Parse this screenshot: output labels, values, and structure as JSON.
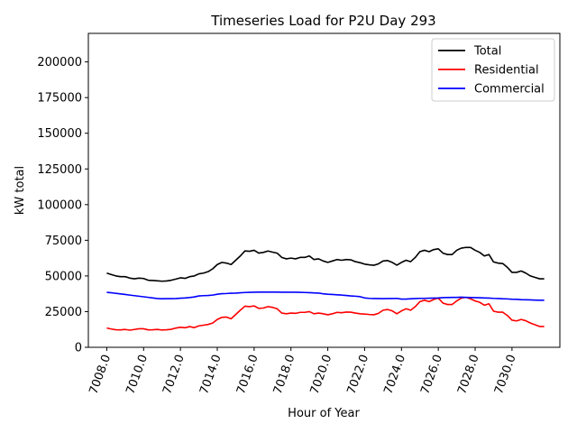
{
  "chart_data": {
    "type": "line",
    "title": "Timeseries Load for P2U   Day 293",
    "xlabel": "Hour of Year",
    "ylabel": "kW total",
    "xlim": [
      7007.0,
      7032.6
    ],
    "ylim": [
      0,
      220000
    ],
    "xticks": [
      7008.0,
      7010.0,
      7012.0,
      7014.0,
      7016.0,
      7018.0,
      7020.0,
      7022.0,
      7024.0,
      7026.0,
      7028.0,
      7030.0
    ],
    "xtick_labels": [
      "7008.0",
      "7010.0",
      "7012.0",
      "7014.0",
      "7016.0",
      "7018.0",
      "7020.0",
      "7022.0",
      "7024.0",
      "7026.0",
      "7028.0",
      "7030.0"
    ],
    "yticks": [
      0,
      25000,
      50000,
      75000,
      100000,
      125000,
      150000,
      175000,
      200000
    ],
    "ytick_labels": [
      "0",
      "25000",
      "50000",
      "75000",
      "100000",
      "125000",
      "150000",
      "175000",
      "200000"
    ],
    "legend_position": "upper right",
    "x": [
      7008.0,
      7008.25,
      7008.5,
      7008.75,
      7009.0,
      7009.25,
      7009.5,
      7009.75,
      7010.0,
      7010.25,
      7010.5,
      7010.75,
      7011.0,
      7011.25,
      7011.5,
      7011.75,
      7012.0,
      7012.25,
      7012.5,
      7012.75,
      7013.0,
      7013.25,
      7013.5,
      7013.75,
      7014.0,
      7014.25,
      7014.5,
      7014.75,
      7015.0,
      7015.25,
      7015.5,
      7015.75,
      7016.0,
      7016.25,
      7016.5,
      7016.75,
      7017.0,
      7017.25,
      7017.5,
      7017.75,
      7018.0,
      7018.25,
      7018.5,
      7018.75,
      7019.0,
      7019.25,
      7019.5,
      7019.75,
      7020.0,
      7020.25,
      7020.5,
      7020.75,
      7021.0,
      7021.25,
      7021.5,
      7021.75,
      7022.0,
      7022.25,
      7022.5,
      7022.75,
      7023.0,
      7023.25,
      7023.5,
      7023.75,
      7024.0,
      7024.25,
      7024.5,
      7024.75,
      7025.0,
      7025.25,
      7025.5,
      7025.75,
      7026.0,
      7026.25,
      7026.5,
      7026.75,
      7027.0,
      7027.25,
      7027.5,
      7027.75,
      7028.0,
      7028.25,
      7028.5,
      7028.75,
      7029.0,
      7029.25,
      7029.5,
      7029.75,
      7030.0,
      7030.25,
      7030.5,
      7030.75,
      7031.0,
      7031.25,
      7031.5,
      7031.75
    ],
    "series": [
      {
        "name": "Total",
        "color": "#000000",
        "values": [
          52000,
          51000,
          50000,
          49500,
          49500,
          48500,
          48000,
          48500,
          48200,
          47000,
          46800,
          46600,
          46300,
          46500,
          47000,
          47800,
          48700,
          48300,
          49500,
          50000,
          51500,
          52000,
          53000,
          55000,
          58000,
          59500,
          59000,
          58000,
          61000,
          64000,
          67500,
          67300,
          68000,
          66000,
          66500,
          67500,
          66700,
          66000,
          63000,
          62000,
          62500,
          62000,
          63000,
          63000,
          64000,
          61500,
          62000,
          60500,
          59500,
          60500,
          61500,
          61000,
          61500,
          61300,
          60000,
          59300,
          58300,
          57800,
          57500,
          58500,
          60500,
          60800,
          59500,
          57600,
          59500,
          61000,
          60000,
          63000,
          67000,
          68000,
          67000,
          68500,
          69000,
          66000,
          65000,
          65000,
          68000,
          69500,
          70000,
          70000,
          68000,
          66500,
          64000,
          65000,
          59800,
          59000,
          58700,
          56000,
          52500,
          52500,
          53500,
          52000,
          50000,
          49000,
          48000,
          48000
        ]
      },
      {
        "name": "Residential",
        "color": "#ff0000",
        "values": [
          13500,
          12800,
          12300,
          12200,
          12500,
          12000,
          12500,
          13000,
          13000,
          12200,
          12300,
          12500,
          12100,
          12300,
          12600,
          13500,
          14000,
          13700,
          14500,
          13800,
          15000,
          15500,
          16000,
          17000,
          19500,
          21000,
          21200,
          20000,
          23000,
          26000,
          28800,
          28500,
          29000,
          27300,
          27500,
          28500,
          28000,
          27000,
          24000,
          23500,
          24000,
          23800,
          24500,
          24500,
          25000,
          23500,
          24000,
          23500,
          22800,
          23500,
          24500,
          24200,
          24700,
          24600,
          24000,
          23500,
          23300,
          23000,
          22800,
          23800,
          26000,
          26500,
          25500,
          23500,
          25500,
          27000,
          26000,
          28500,
          32000,
          33000,
          32000,
          33500,
          34500,
          31000,
          30000,
          30000,
          32500,
          34500,
          35000,
          34000,
          32500,
          31500,
          29500,
          30500,
          25300,
          24600,
          24600,
          22300,
          19000,
          18500,
          19500,
          18600,
          17000,
          15800,
          14600,
          14600
        ]
      },
      {
        "name": "Commercial",
        "color": "#0000ff",
        "values": [
          38500,
          38200,
          37800,
          37400,
          37000,
          36600,
          36200,
          35800,
          35400,
          35000,
          34600,
          34200,
          34000,
          34100,
          34100,
          34200,
          34400,
          34600,
          34900,
          35300,
          36000,
          36200,
          36300,
          36600,
          37200,
          37600,
          37700,
          37900,
          38000,
          38200,
          38400,
          38500,
          38600,
          38700,
          38700,
          38700,
          38700,
          38700,
          38600,
          38600,
          38600,
          38600,
          38500,
          38400,
          38300,
          38100,
          38000,
          37500,
          37200,
          37000,
          36800,
          36600,
          36300,
          36000,
          35800,
          35500,
          34600,
          34300,
          34200,
          34200,
          34100,
          34200,
          34200,
          34300,
          33800,
          33800,
          34000,
          34200,
          34300,
          34300,
          34400,
          34500,
          34600,
          34800,
          34900,
          35000,
          35000,
          35100,
          35000,
          34900,
          34800,
          34700,
          34600,
          34500,
          34300,
          34200,
          34000,
          33900,
          33700,
          33600,
          33400,
          33300,
          33200,
          33100,
          33000,
          33000
        ]
      }
    ]
  }
}
